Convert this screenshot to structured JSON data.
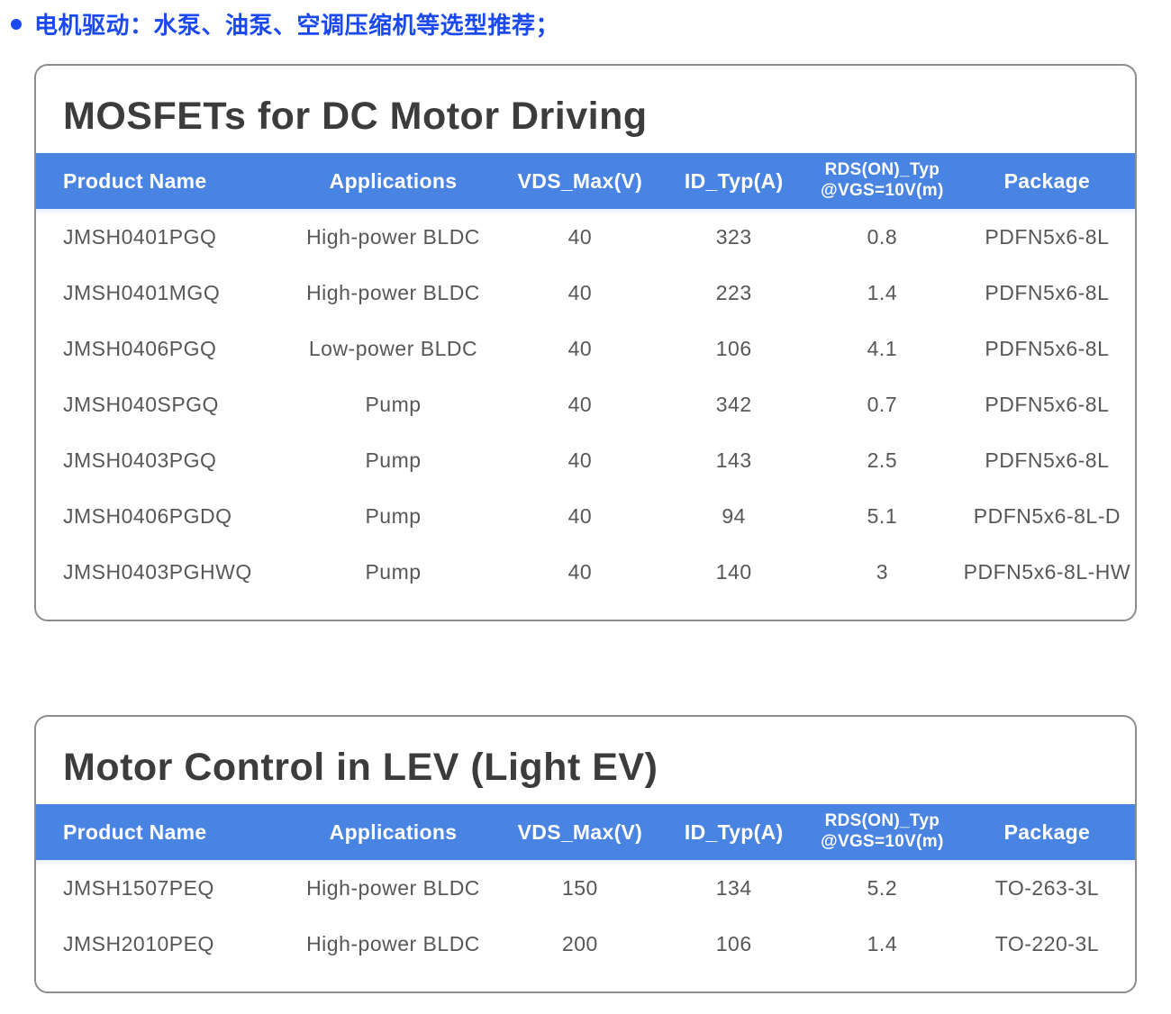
{
  "page": {
    "heading": "电机驱动：水泵、油泵、空调压缩机等选型推荐；",
    "colors": {
      "heading_blue": "#1b49f0",
      "table_header_blue": "#4a84e2",
      "title_gray": "#3c3c3c",
      "cell_gray": "#565759",
      "card_border_gray": "#8d8d8d"
    }
  },
  "tables": [
    {
      "title": "MOSFETs for DC Motor Driving",
      "columns": [
        "Product Name",
        "Applications",
        "VDS_Max(V)",
        "ID_Typ(A)",
        "RDS(ON)_Typ\n@VGS=10V(m)",
        "Package"
      ],
      "rows": [
        [
          "JMSH0401PGQ",
          "High-power BLDC",
          "40",
          "323",
          "0.8",
          "PDFN5x6-8L"
        ],
        [
          "JMSH0401MGQ",
          "High-power BLDC",
          "40",
          "223",
          "1.4",
          "PDFN5x6-8L"
        ],
        [
          "JMSH0406PGQ",
          "Low-power BLDC",
          "40",
          "106",
          "4.1",
          "PDFN5x6-8L"
        ],
        [
          "JMSH040SPGQ",
          "Pump",
          "40",
          "342",
          "0.7",
          "PDFN5x6-8L"
        ],
        [
          "JMSH0403PGQ",
          "Pump",
          "40",
          "143",
          "2.5",
          "PDFN5x6-8L"
        ],
        [
          "JMSH0406PGDQ",
          "Pump",
          "40",
          "94",
          "5.1",
          "PDFN5x6-8L-D"
        ],
        [
          "JMSH0403PGHWQ",
          "Pump",
          "40",
          "140",
          "3",
          "PDFN5x6-8L-HW"
        ]
      ]
    },
    {
      "title": "Motor Control in LEV (Light EV)",
      "columns": [
        "Product Name",
        "Applications",
        "VDS_Max(V)",
        "ID_Typ(A)",
        "RDS(ON)_Typ\n@VGS=10V(m)",
        "Package"
      ],
      "rows": [
        [
          "JMSH1507PEQ",
          "High-power BLDC",
          "150",
          "134",
          "5.2",
          "TO-263-3L"
        ],
        [
          "JMSH2010PEQ",
          "High-power BLDC",
          "200",
          "106",
          "1.4",
          "TO-220-3L"
        ]
      ]
    }
  ]
}
